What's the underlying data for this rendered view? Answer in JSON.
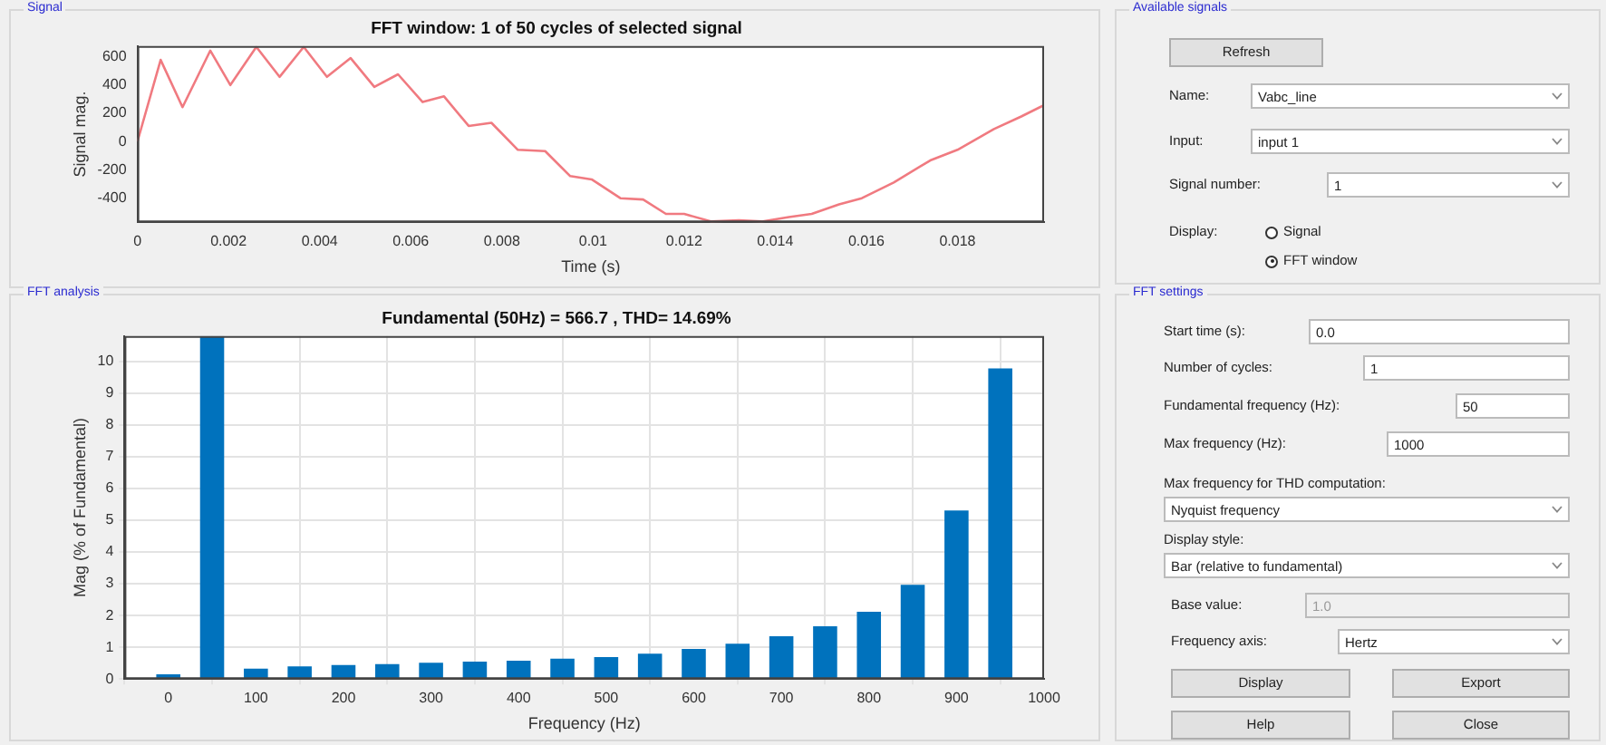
{
  "chart_data": [
    {
      "type": "line",
      "title": "FFT window: 1 of 50 cycles of selected signal",
      "xlabel": "Time (s)",
      "ylabel": "Signal mag.",
      "annotations": [
        "Signal"
      ],
      "series": [
        {
          "color": "#f07a80",
          "x": [
            0,
            0.00051,
            0.00099,
            0.0016,
            0.00204,
            0.00261,
            0.00312,
            0.00365,
            0.00416,
            0.00468,
            0.0052,
            0.00572,
            0.00626,
            0.00673,
            0.00727,
            0.00777,
            0.00835,
            0.00895,
            0.0095,
            0.00997,
            0.0106,
            0.0111,
            0.0116,
            0.012,
            0.0126,
            0.0132,
            0.0137,
            0.0143,
            0.0148,
            0.0154,
            0.0159,
            0.0166,
            0.0174,
            0.018,
            0.0188,
            0.0194,
            0.0199
          ],
          "values": [
            0,
            578,
            244,
            644,
            400,
            670,
            458,
            670,
            458,
            591,
            387,
            476,
            280,
            320,
            111,
            133,
            -58,
            -67,
            -244,
            -267,
            -400,
            -409,
            -511,
            -511,
            -565,
            -556,
            -565,
            -533,
            -511,
            -444,
            -400,
            -289,
            -133,
            -58,
            89,
            178,
            258
          ]
        }
      ],
      "xlim": [
        0,
        0.0199
      ],
      "ylim": [
        -570,
        676
      ],
      "xticks": [
        0,
        0.002,
        0.004,
        0.006,
        0.008,
        0.01,
        0.012,
        0.014,
        0.016,
        0.018
      ],
      "yticks": [
        -400,
        -200,
        0,
        200,
        400,
        600
      ],
      "grid": false,
      "marker": "none",
      "line_style": "solid"
    },
    {
      "type": "bar",
      "title": "Fundamental (50Hz) = 566.7 , THD= 14.69%",
      "xlabel": "Frequency (Hz)",
      "ylabel": "Mag (% of Fundamental)",
      "annotations": [
        "FFT analysis"
      ],
      "x": [
        0,
        50,
        100,
        150,
        200,
        250,
        300,
        350,
        400,
        450,
        500,
        550,
        600,
        650,
        700,
        750,
        800,
        850,
        900,
        950
      ],
      "values": [
        0.15,
        10.8,
        0.33,
        0.4,
        0.44,
        0.47,
        0.51,
        0.55,
        0.58,
        0.64,
        0.69,
        0.8,
        0.95,
        1.11,
        1.35,
        1.66,
        2.12,
        2.97,
        5.31,
        9.78
      ],
      "color": "#0072bd",
      "xlim": [
        -50,
        1000
      ],
      "ylim": [
        0,
        10.8
      ],
      "xticks": [
        0,
        100,
        200,
        300,
        400,
        500,
        600,
        700,
        800,
        900,
        1000
      ],
      "yticks": [
        0,
        1,
        2,
        3,
        4,
        5,
        6,
        7,
        8,
        9,
        10
      ],
      "grid": true
    },
    {
      "type": "other",
      "title": "Available signals",
      "annotations": [
        "Refresh",
        "Name:",
        "Vabc_line",
        "Input:",
        "input 1",
        "Signal number:",
        "1",
        "Display:",
        "Signal",
        "FFT window"
      ]
    },
    {
      "type": "other",
      "title": "FFT settings",
      "annotations": [
        "Start time (s):",
        "0.0",
        "Number of cycles:",
        "1",
        "Fundamental frequency (Hz):",
        "50",
        "Max frequency (Hz):",
        "1000",
        "Max frequency for THD computation:",
        "Nyquist frequency",
        "Display style:",
        "Bar (relative to fundamental)",
        "Base value:",
        "1.0",
        "Frequency axis:",
        "Hertz",
        "Display",
        "Export",
        "Help",
        "Close"
      ]
    }
  ]
}
